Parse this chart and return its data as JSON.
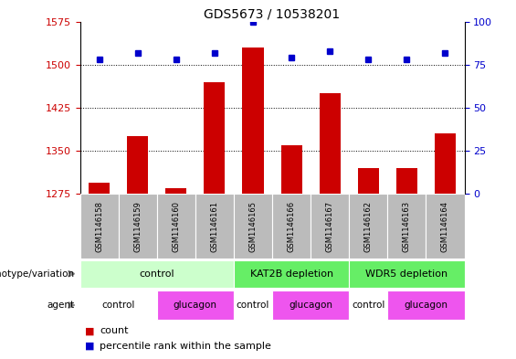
{
  "title": "GDS5673 / 10538201",
  "samples": [
    "GSM1146158",
    "GSM1146159",
    "GSM1146160",
    "GSM1146161",
    "GSM1146165",
    "GSM1146166",
    "GSM1146167",
    "GSM1146162",
    "GSM1146163",
    "GSM1146164"
  ],
  "counts": [
    1295,
    1375,
    1285,
    1470,
    1530,
    1360,
    1450,
    1320,
    1320,
    1380
  ],
  "percentiles": [
    78,
    82,
    78,
    82,
    100,
    79,
    83,
    78,
    78,
    82
  ],
  "ylim_left": [
    1275,
    1575
  ],
  "ylim_right": [
    0,
    100
  ],
  "yticks_left": [
    1275,
    1350,
    1425,
    1500,
    1575
  ],
  "yticks_right": [
    0,
    25,
    50,
    75,
    100
  ],
  "bar_color": "#cc0000",
  "dot_color": "#0000cc",
  "grid_color": "#000000",
  "genotype_groups": [
    {
      "label": "control",
      "start": 0,
      "end": 4,
      "color": "#ccffcc"
    },
    {
      "label": "KAT2B depletion",
      "start": 4,
      "end": 7,
      "color": "#66ee66"
    },
    {
      "label": "WDR5 depletion",
      "start": 7,
      "end": 10,
      "color": "#66ee66"
    }
  ],
  "agent_groups": [
    {
      "label": "control",
      "start": 0,
      "end": 2,
      "color": "#ffffff"
    },
    {
      "label": "glucagon",
      "start": 2,
      "end": 4,
      "color": "#ee55ee"
    },
    {
      "label": "control",
      "start": 4,
      "end": 5,
      "color": "#ffffff"
    },
    {
      "label": "glucagon",
      "start": 5,
      "end": 7,
      "color": "#ee55ee"
    },
    {
      "label": "control",
      "start": 7,
      "end": 8,
      "color": "#ffffff"
    },
    {
      "label": "glucagon",
      "start": 8,
      "end": 10,
      "color": "#ee55ee"
    }
  ],
  "left_label_color": "#cc0000",
  "right_label_color": "#0000cc",
  "title_fontsize": 10,
  "tick_fontsize": 8,
  "sample_fontsize": 6,
  "row_fontsize": 8,
  "legend_fontsize": 8,
  "bar_width": 0.55,
  "sample_box_color": "#bbbbbb",
  "arrow_color": "#888888"
}
